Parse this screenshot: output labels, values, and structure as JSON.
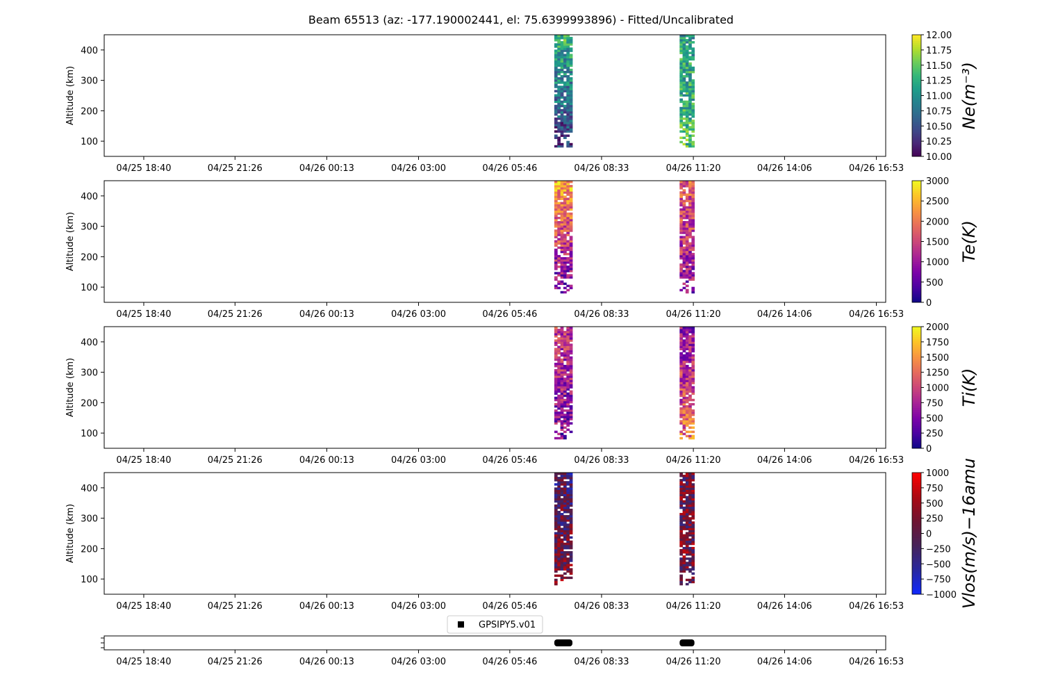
{
  "chart_data": {
    "type": "heatmap",
    "title": "Beam 65513 (az: -177.190002441, el: 75.6399993896) - Fitted/Uncalibrated",
    "x_tick_labels": [
      "04/25 18:40",
      "04/25 21:26",
      "04/26 00:13",
      "04/26 03:00",
      "04/26 05:46",
      "04/26 08:33",
      "04/26 11:20",
      "04/26 14:06",
      "04/26 16:53"
    ],
    "xlim_hours": [
      -1.2,
      22.5
    ],
    "x_tick_hours": [
      0.0,
      2.767,
      5.55,
      8.333,
      11.1,
      13.883,
      16.667,
      19.433,
      22.217
    ],
    "ylabel": "Altitude (km)",
    "ylim": [
      50,
      450
    ],
    "y_ticks": [
      100,
      200,
      300,
      400
    ],
    "data_windows_hours": [
      [
        12.45,
        13.0
      ],
      [
        16.25,
        16.7
      ]
    ],
    "panels": [
      {
        "name": "Ne",
        "colorbar_label": "Ne(m⁻³)",
        "colormap": "viridis",
        "clim": [
          10.0,
          12.0
        ],
        "cbar_ticks": [
          "10.00",
          "10.25",
          "10.50",
          "10.75",
          "11.00",
          "11.25",
          "11.50",
          "11.75",
          "12.00"
        ],
        "blocks": [
          {
            "t0": 12.45,
            "t1": 13.0,
            "alt_min": 80,
            "alt_max": 450,
            "low_alt_value": 10.3,
            "high_alt_value": 11.3
          },
          {
            "t0": 16.25,
            "t1": 16.7,
            "alt_min": 80,
            "alt_max": 450,
            "low_alt_value": 11.4,
            "high_alt_value": 11.1
          }
        ]
      },
      {
        "name": "Te",
        "colorbar_label": "Te(K)",
        "colormap": "plasma",
        "clim": [
          0,
          3000
        ],
        "cbar_ticks": [
          "0",
          "500",
          "1000",
          "1500",
          "2000",
          "2500",
          "3000"
        ],
        "blocks": [
          {
            "t0": 12.45,
            "t1": 13.0,
            "alt_min": 80,
            "alt_max": 450,
            "low_alt_value": 600,
            "high_alt_value": 2400
          },
          {
            "t0": 16.25,
            "t1": 16.7,
            "alt_min": 80,
            "alt_max": 450,
            "low_alt_value": 900,
            "high_alt_value": 1800
          }
        ]
      },
      {
        "name": "Ti",
        "colorbar_label": "Ti(K)",
        "colormap": "plasma",
        "clim": [
          0,
          2000
        ],
        "cbar_ticks": [
          "0",
          "250",
          "500",
          "750",
          "1000",
          "1250",
          "1500",
          "1750",
          "2000"
        ],
        "blocks": [
          {
            "t0": 12.45,
            "t1": 13.0,
            "alt_min": 80,
            "alt_max": 450,
            "low_alt_value": 500,
            "high_alt_value": 900
          },
          {
            "t0": 16.25,
            "t1": 16.7,
            "alt_min": 80,
            "alt_max": 450,
            "low_alt_value": 1300,
            "high_alt_value": 600
          }
        ]
      },
      {
        "name": "Vlos",
        "colorbar_label": "Vlos(m/s)−16amu",
        "colormap": "blue-red",
        "clim": [
          -1000,
          1000
        ],
        "cbar_ticks": [
          "−1000",
          "−750",
          "−500",
          "−250",
          "0",
          "250",
          "500",
          "750",
          "1000"
        ],
        "blocks": [
          {
            "t0": 12.45,
            "t1": 13.0,
            "alt_min": 80,
            "alt_max": 450,
            "low_alt_value": 200,
            "high_alt_value": -200
          },
          {
            "t0": 16.25,
            "t1": 16.7,
            "alt_min": 80,
            "alt_max": 450,
            "low_alt_value": 150,
            "high_alt_value": 100
          }
        ]
      }
    ],
    "bottom_panel": {
      "legend": "GPSIPY5.v01",
      "legend_placement": "top-center",
      "bars_hours": [
        [
          12.45,
          13.0
        ],
        [
          16.25,
          16.7
        ]
      ]
    }
  }
}
